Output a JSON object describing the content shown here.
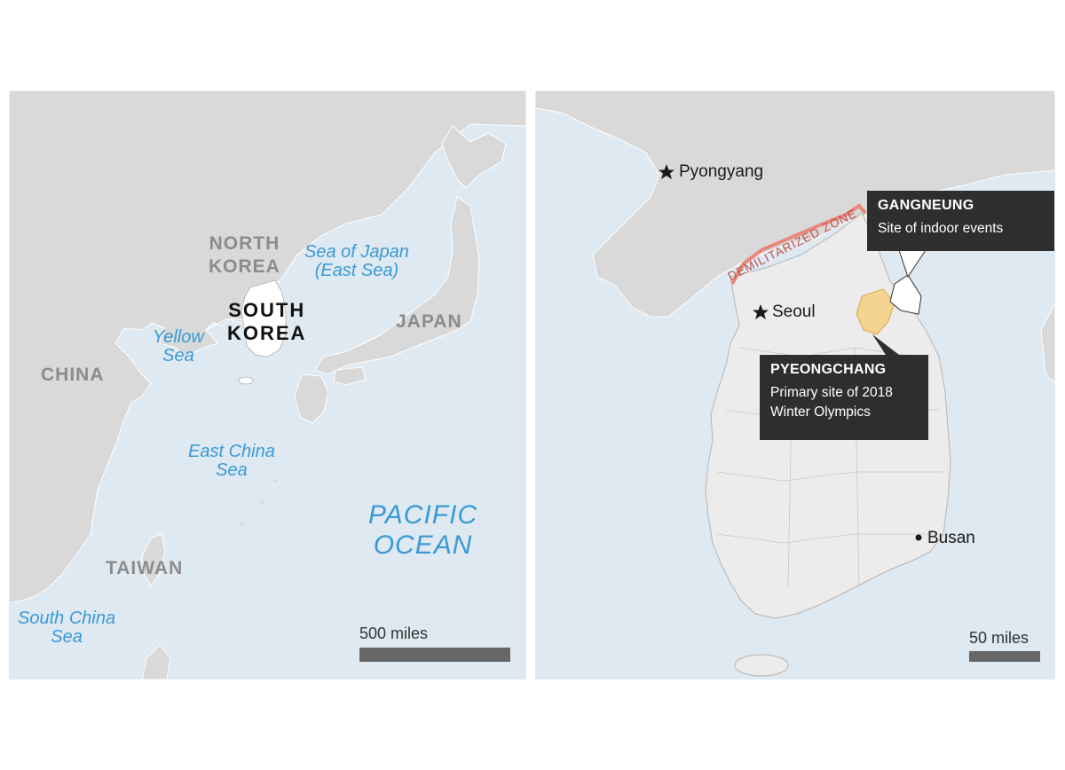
{
  "overview_map": {
    "countries": {
      "north_korea": [
        "NORTH",
        "KOREA"
      ],
      "south_korea": [
        "SOUTH",
        "KOREA"
      ],
      "china": "CHINA",
      "japan": "JAPAN",
      "taiwan": "TAIWAN"
    },
    "seas": {
      "sea_of_japan": [
        "Sea of Japan",
        "(East Sea)"
      ],
      "yellow_sea": [
        "Yellow",
        "Sea"
      ],
      "east_china_sea": [
        "East China",
        "Sea"
      ],
      "south_china_sea": [
        "South China",
        "Sea"
      ],
      "pacific_ocean": [
        "PACIFIC",
        "OCEAN"
      ]
    },
    "scale": {
      "label": "500 miles"
    }
  },
  "detail_map": {
    "cities": {
      "pyongyang": "Pyongyang",
      "seoul": "Seoul",
      "busan": "Busan"
    },
    "dmz_label": "DEMILITARIZED ZONE",
    "callouts": {
      "gangneung": {
        "title": "GANGNEUNG",
        "desc": "Site of indoor events"
      },
      "pyeongchang": {
        "title": "PYEONGCHANG",
        "desc": [
          "Primary site of 2018",
          "Winter Olympics"
        ]
      }
    },
    "scale": {
      "label": "50 miles"
    }
  },
  "colors": {
    "water": "#dfe9f1",
    "land": "#d9d9d9",
    "south_korea_land": "#ececec",
    "highlight_pyeongchang": "#f4d490",
    "dmz_line": "#e8877b",
    "callout_bg": "#2e2e2e"
  }
}
